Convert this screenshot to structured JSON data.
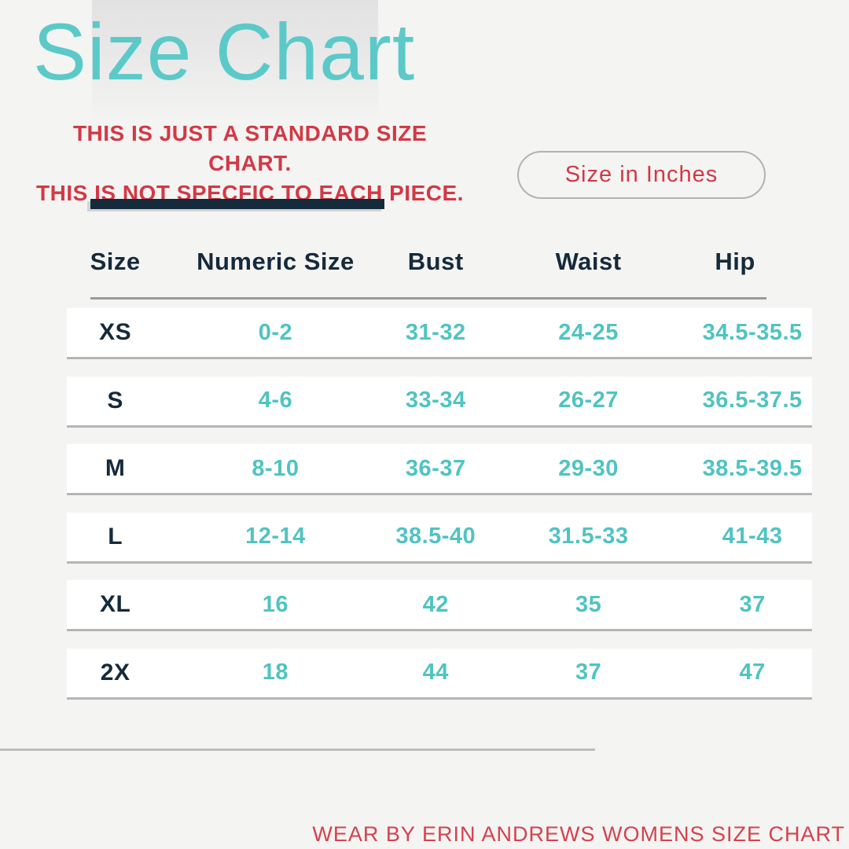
{
  "page": {
    "background": "#F4F4F3"
  },
  "header": {
    "title": "Size Chart"
  },
  "disclaimer": {
    "line1": "THIS IS JUST A STANDARD SIZE CHART.",
    "line2": "THIS IS NOT SPECFIC TO EACH PIECE."
  },
  "unit_toggle": {
    "label": "Size in Inches"
  },
  "footer": {
    "text": "WEAR BY ERIN ANDREWS WOMENS SIZE CHART"
  },
  "colors": {
    "teal": "#5CC9C9",
    "teal-values": "#4FC4C1",
    "navy": "#152A3B",
    "red": "#D23944",
    "line-gray": "#B5B5B5",
    "bg": "#F4F4F3"
  },
  "chart_data": {
    "type": "table",
    "title": "Size Chart",
    "units": "inches",
    "columns": [
      "Size",
      "Numeric Size",
      "Bust",
      "Waist",
      "Hip"
    ],
    "rows": [
      [
        "XS",
        "0-2",
        "31-32",
        "24-25",
        "34.5-35.5"
      ],
      [
        "S",
        "4-6",
        "33-34",
        "26-27",
        "36.5-37.5"
      ],
      [
        "M",
        "8-10",
        "36-37",
        "29-30",
        "38.5-39.5"
      ],
      [
        "L",
        "12-14",
        "38.5-40",
        "31.5-33",
        "41-43"
      ],
      [
        "XL",
        "16",
        "42",
        "35",
        "37"
      ],
      [
        "2X",
        "18",
        "44",
        "37",
        "47"
      ]
    ]
  }
}
